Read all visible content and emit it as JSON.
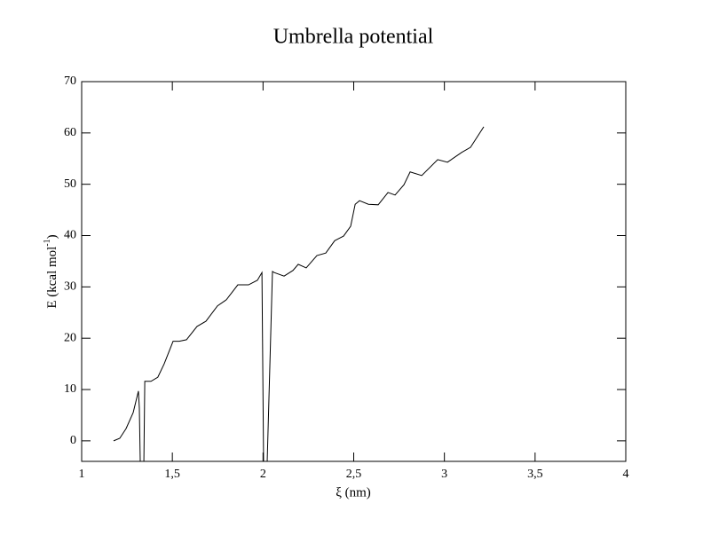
{
  "chart_data": {
    "type": "line",
    "title": "Umbrella potential",
    "x_label": "ξ (nm)",
    "y_label": "E (kcal mol",
    "y_label_sup": "-1",
    "y_label_end": ")",
    "x": [
      1.176,
      1.21,
      1.245,
      1.284,
      1.313,
      1.318,
      1.323,
      1.343,
      1.348,
      1.382,
      1.42,
      1.455,
      1.504,
      1.538,
      1.578,
      1.636,
      1.685,
      1.749,
      1.798,
      1.861,
      1.92,
      1.969,
      1.994,
      2.003,
      2.023,
      2.052,
      2.062,
      2.116,
      2.165,
      2.194,
      2.238,
      2.297,
      2.346,
      2.395,
      2.444,
      2.483,
      2.508,
      2.532,
      2.581,
      2.635,
      2.689,
      2.728,
      2.777,
      2.811,
      2.875,
      2.963,
      3.017,
      3.095,
      3.144,
      3.217
    ],
    "series": [
      {
        "color": "#000000",
        "values": [
          0,
          0.5,
          2.4,
          5.5,
          9.7,
          6.4,
          -4,
          -4,
          11.6,
          11.6,
          12.4,
          15,
          19.4,
          19.4,
          19.7,
          22.3,
          23.3,
          26.3,
          27.5,
          30.4,
          30.4,
          31.3,
          32.8,
          -4,
          -4,
          33,
          32.8,
          32.1,
          33.2,
          34.4,
          33.7,
          36.1,
          36.6,
          39,
          39.9,
          41.8,
          46.1,
          46.8,
          46.1,
          46,
          48.4,
          47.9,
          49.9,
          52.4,
          51.7,
          54.8,
          54.3,
          56.2,
          57.2,
          61.2
        ]
      }
    ],
    "xlim": [
      1,
      4
    ],
    "xticks": [
      1,
      {
        "value": 1.5,
        "label": "1,5"
      },
      2,
      {
        "value": 2.5,
        "label": "2,5"
      },
      3,
      {
        "value": 3.5,
        "label": "3,5"
      },
      4
    ],
    "ylim": [
      -4,
      70
    ],
    "yticks": [
      0,
      10,
      20,
      30,
      40,
      50,
      60,
      70
    ],
    "grid": false
  }
}
